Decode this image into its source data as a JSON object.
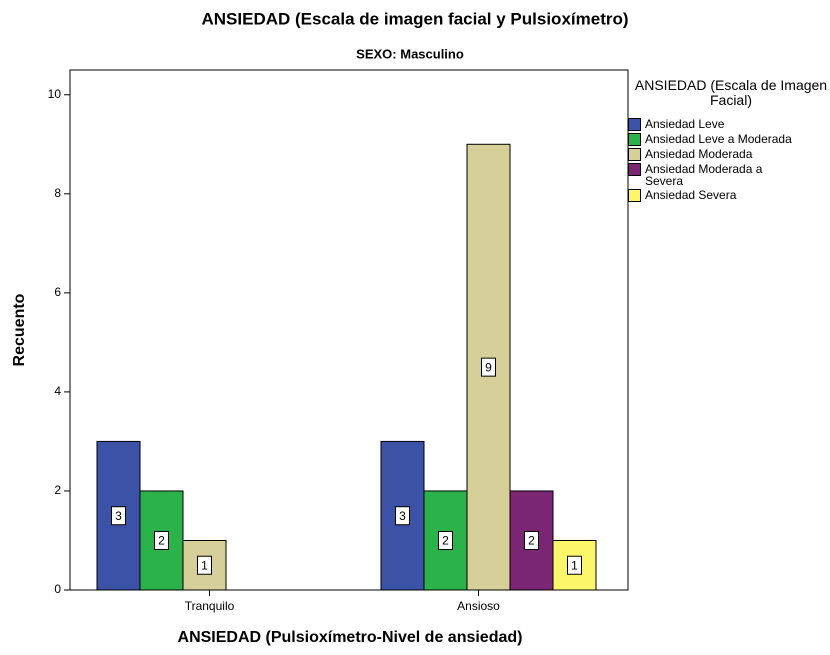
{
  "chart_data": {
    "type": "bar",
    "title": "ANSIEDAD (Escala de imagen facial y Pulsioxímetro)",
    "subtitle": "SEXO: Masculino",
    "x_label": "ANSIEDAD  (Pulsioxímetro-Nivel de ansiedad)",
    "y_label": "Recuento",
    "legend_title": "ANSIEDAD  (Escala de Imagen Facial)",
    "categories": [
      "Tranquilo",
      "Ansioso"
    ],
    "series": [
      {
        "name": "Ansiedad Leve",
        "color": "#3c52a6",
        "values": [
          3,
          3
        ]
      },
      {
        "name": "Ansiedad Leve a Moderada",
        "color": "#2bb24a",
        "values": [
          2,
          2
        ]
      },
      {
        "name": "Ansiedad Moderada",
        "color": "#d6cf99",
        "values": [
          1,
          9
        ]
      },
      {
        "name": "Ansiedad Moderada a Severa",
        "color": "#7b2674",
        "values": [
          null,
          2
        ]
      },
      {
        "name": "Ansiedad Severa",
        "color": "#fbf66a",
        "values": [
          null,
          1
        ]
      }
    ],
    "ylim": [
      0,
      10.5
    ],
    "yticks": [
      0,
      2,
      4,
      6,
      8,
      10
    ],
    "legend": "right"
  }
}
